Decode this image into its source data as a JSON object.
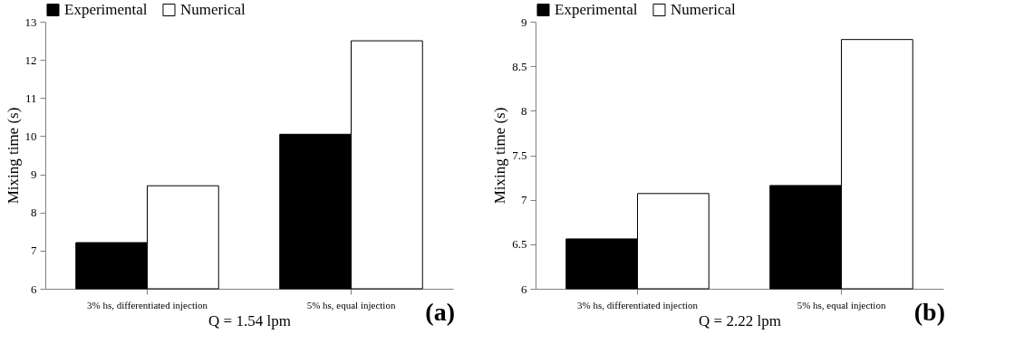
{
  "chart_data": [
    {
      "type": "bar",
      "xlabel": "Q = 1.54 lpm",
      "ylabel": "Mixing time (s)",
      "categories": [
        "3% hs, differentiated injection",
        "5% hs, equal injection"
      ],
      "series": [
        {
          "name": "Experimental",
          "color": "#000000",
          "values": [
            7.21,
            10.05
          ]
        },
        {
          "name": "Numerical",
          "color": "#ffffff",
          "values": [
            8.7,
            12.5
          ]
        }
      ],
      "ylim": [
        6,
        13
      ],
      "yticks": [
        6,
        7,
        8,
        9,
        10,
        11,
        12,
        13
      ],
      "grid": false,
      "legend": "top",
      "annotations": [
        "(a)"
      ]
    },
    {
      "type": "bar",
      "xlabel": "Q = 2.22 lpm",
      "ylabel": "Mixing time (s)",
      "categories": [
        "3% hs, differentiated injection",
        "5% hs, equal injection"
      ],
      "series": [
        {
          "name": "Experimental",
          "color": "#000000",
          "values": [
            6.56,
            7.16
          ]
        },
        {
          "name": "Numerical",
          "color": "#ffffff",
          "values": [
            7.07,
            8.8
          ]
        }
      ],
      "ylim": [
        6,
        9
      ],
      "yticks": [
        6,
        6.5,
        7,
        7.5,
        8,
        8.5,
        9
      ],
      "grid": false,
      "legend": "top",
      "annotations": [
        "(b)"
      ]
    }
  ]
}
